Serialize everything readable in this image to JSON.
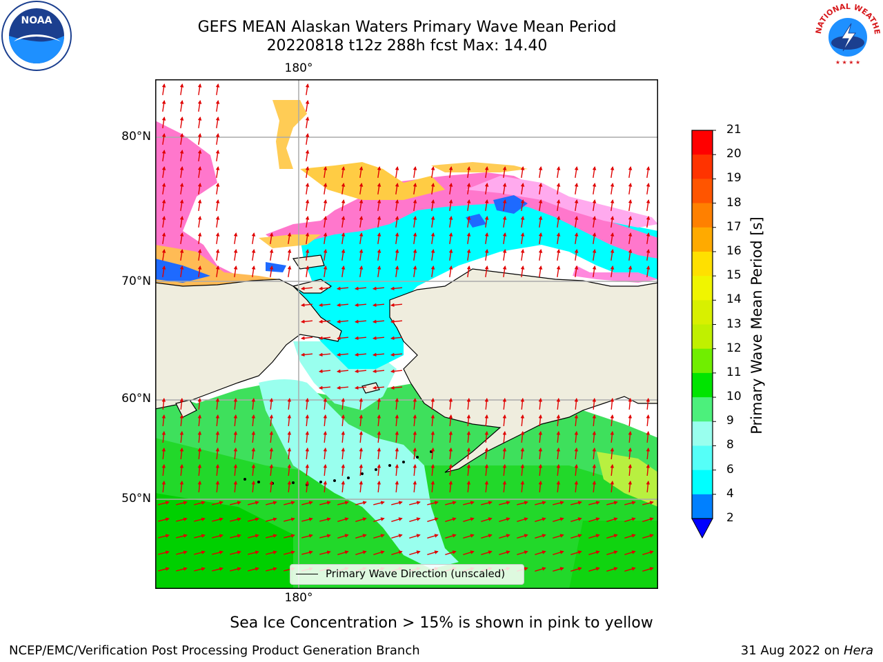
{
  "title": {
    "line1": "GEFS MEAN Alaskan Waters Primary Wave Mean Period",
    "line2": "20220818 t12z 288h fcst   Max: 14.40"
  },
  "axes": {
    "lon_top": "180°",
    "lon_bottom": "180°",
    "lat_labels": [
      "80°N",
      "70°N",
      "60°N",
      "50°N"
    ]
  },
  "legend": {
    "label": "Primary Wave Direction (unscaled)"
  },
  "colorbar": {
    "label": "Primary Wave Mean Period [s]",
    "ticks": [
      "21",
      "20",
      "19",
      "18",
      "17",
      "16",
      "15",
      "14",
      "13",
      "12",
      "11",
      "10",
      "9",
      "8",
      "6",
      "4",
      "2"
    ],
    "colors": [
      "#ff0000",
      "#ff3300",
      "#ff5500",
      "#ff8000",
      "#ffaa00",
      "#ffe000",
      "#f0f500",
      "#d8f000",
      "#c0f000",
      "#70ee00",
      "#00e400",
      "#4cf07c",
      "#99ffee",
      "#55fff8",
      "#00ffff",
      "#0080ff",
      "#0000ff"
    ]
  },
  "note": "Sea Ice Concentration > 15% is shown in pink to yellow",
  "footer": {
    "left": "NCEP/EMC/Verification Post Processing Product Generation Branch",
    "right_date": "31 Aug 2022 on ",
    "right_host": "Hera"
  },
  "logos": {
    "noaa_text": "NOAA",
    "nws_text": "NATIONAL WEATHER SERVICE"
  }
}
